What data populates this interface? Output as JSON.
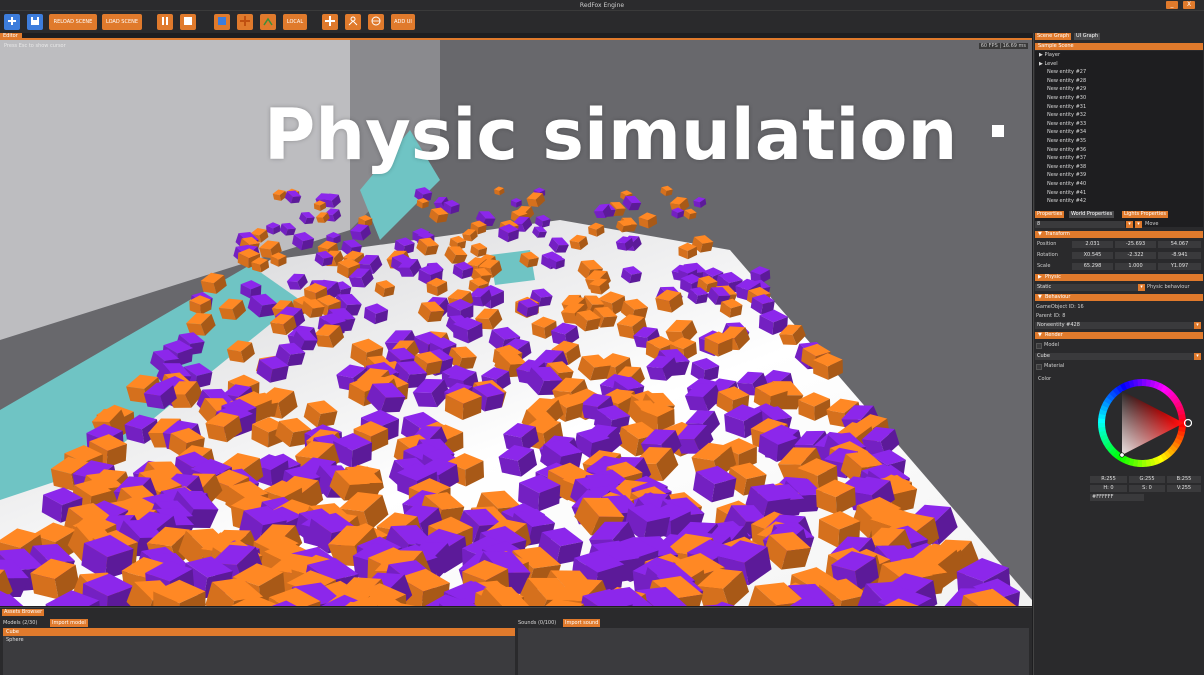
{
  "window": {
    "title": "RedFox Engine",
    "minimize_label": "_",
    "close_label": "X"
  },
  "toolbar": {
    "reload_scene": "RELOAD SCENE",
    "load_scene": "LOAD SCENE",
    "local": "LOCAL",
    "add_ui": "ADD UI"
  },
  "editor": {
    "tab_label": "Editor",
    "hint": "Press Esc to show cursor",
    "fps": "60 FPS | 16.69 ms",
    "overlay_title": "Physic simulation"
  },
  "scene_graph": {
    "tabs": [
      "Scene Graph",
      "UI Graph"
    ],
    "header": "Sample Scene",
    "items": [
      {
        "label": "Player",
        "kind": "tree"
      },
      {
        "label": "Level",
        "kind": "tree"
      },
      {
        "label": "New entity #27",
        "kind": "ent"
      },
      {
        "label": "New entity #28",
        "kind": "ent"
      },
      {
        "label": "New entity #29",
        "kind": "ent"
      },
      {
        "label": "New entity #30",
        "kind": "ent"
      },
      {
        "label": "New entity #31",
        "kind": "ent"
      },
      {
        "label": "New entity #32",
        "kind": "ent"
      },
      {
        "label": "New entity #33",
        "kind": "ent"
      },
      {
        "label": "New entity #34",
        "kind": "ent"
      },
      {
        "label": "New entity #35",
        "kind": "ent"
      },
      {
        "label": "New entity #36",
        "kind": "ent"
      },
      {
        "label": "New entity #37",
        "kind": "ent"
      },
      {
        "label": "New entity #38",
        "kind": "ent"
      },
      {
        "label": "New entity #39",
        "kind": "ent"
      },
      {
        "label": "New entity #40",
        "kind": "ent"
      },
      {
        "label": "New entity #41",
        "kind": "ent"
      },
      {
        "label": "New entity #42",
        "kind": "ent"
      }
    ]
  },
  "properties": {
    "tabs": [
      "Properties",
      "World Properties",
      "Lights Properties"
    ],
    "name_value": "8",
    "move_label": "Move",
    "transform": {
      "header": "Transform",
      "rows": [
        {
          "label": "Position",
          "values": [
            "2.031",
            "-25.693",
            "54.067"
          ]
        },
        {
          "label": "Rotation",
          "values": [
            "X0.545",
            "-2.322",
            "-8.941"
          ]
        },
        {
          "label": "Scale",
          "values": [
            "65.298",
            "1.000",
            "Y1.097"
          ]
        }
      ]
    },
    "physic": {
      "header": "Physic",
      "type_value": "Static",
      "behaviour_label": "Physic behaviour"
    },
    "behaviour": {
      "header": "Behaviour",
      "gameobject_id": "GameObject ID: 16",
      "parent_id": "Parent ID: 8",
      "dropdown_value": "Noneentity #428"
    },
    "render": {
      "header": "Render",
      "model_label": "Model",
      "model_value": "Cube",
      "material_label": "Material",
      "color_label": "Color"
    },
    "color": {
      "r": "R:255",
      "g": "G:255",
      "b": "B:255",
      "h": "H: 0",
      "s": "S: 0",
      "v": "V:255",
      "hex": "#FFFFFF",
      "marker_color": "#ff2020"
    }
  },
  "assets": {
    "tab": "Assets Browser",
    "models": {
      "title": "Models (2/30)",
      "button": "Import model",
      "items": [
        "Cube",
        "Sphere"
      ],
      "selected": 0
    },
    "sounds": {
      "title": "Sounds (0/100)",
      "button": "Import sound"
    }
  },
  "colors": {
    "accent": "#e07a2c",
    "cube_orange": "#e0761f",
    "cube_purple": "#7a22cc",
    "ramp": "#6fc4c4"
  }
}
